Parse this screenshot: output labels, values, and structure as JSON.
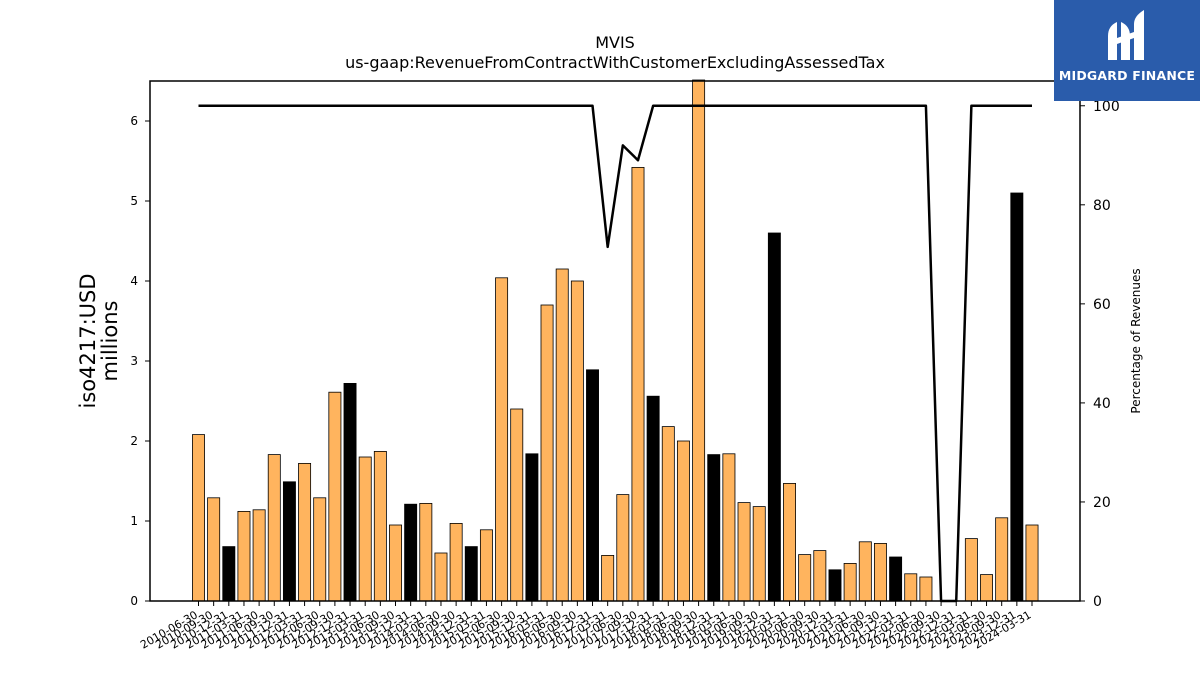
{
  "chart_data": {
    "type": "bar",
    "title": "MVIS",
    "subtitle": "us-gaap:RevenueFromContractWithCustomerExcludingAssessedTax",
    "ylabel_line1": "iso4217:USD",
    "ylabel_line2": "millions",
    "y2label": "Percentage of Revenues",
    "ylim": [
      0,
      6.5
    ],
    "y2lim": [
      0,
      105
    ],
    "yticks": [
      "0",
      "1",
      "2",
      "3",
      "4",
      "5",
      "6"
    ],
    "y2ticks": [
      "0",
      "20",
      "40",
      "60",
      "80",
      "100"
    ],
    "categories": [
      "2010-06-30",
      "2010-09-30",
      "2010-12-31",
      "2011-03-31",
      "2011-06-30",
      "2011-09-30",
      "2011-12-31",
      "2012-03-31",
      "2012-06-30",
      "2012-09-30",
      "2012-12-31",
      "2013-03-31",
      "2013-06-30",
      "2013-09-30",
      "2013-12-31",
      "2014-03-31",
      "2014-06-30",
      "2014-09-30",
      "2014-12-31",
      "2015-03-31",
      "2015-06-30",
      "2015-09-30",
      "2015-12-31",
      "2016-03-31",
      "2016-06-30",
      "2016-09-30",
      "2016-12-31",
      "2017-03-31",
      "2017-06-30",
      "2017-09-30",
      "2017-12-31",
      "2018-03-31",
      "2018-06-30",
      "2018-09-30",
      "2018-12-31",
      "2019-03-31",
      "2019-06-30",
      "2019-09-30",
      "2019-12-31",
      "2020-03-31",
      "2020-06-30",
      "2020-09-30",
      "2020-12-31",
      "2021-03-31",
      "2021-06-30",
      "2021-09-30",
      "2021-12-31",
      "2022-03-31",
      "2022-06-30",
      "2022-09-30",
      "2022-12-31",
      "2023-03-31",
      "2023-06-30",
      "2023-09-30",
      "2023-12-31",
      "2024-03-31"
    ],
    "values": [
      2.08,
      1.29,
      0.68,
      1.12,
      1.14,
      1.83,
      1.49,
      1.72,
      1.29,
      2.61,
      2.72,
      1.8,
      1.87,
      0.95,
      1.21,
      1.22,
      0.6,
      0.97,
      0.68,
      0.89,
      4.04,
      2.4,
      1.84,
      3.7,
      4.15,
      4.0,
      2.89,
      0.57,
      1.33,
      5.42,
      2.56,
      2.18,
      2.0,
      6.6,
      1.83,
      1.84,
      1.23,
      1.18,
      4.6,
      1.47,
      0.58,
      0.63,
      0.39,
      0.47,
      0.74,
      0.72,
      0.55,
      0.34,
      0.3,
      0.0,
      0.0,
      0.78,
      0.33,
      1.04,
      5.1,
      0.95
    ],
    "bar_highlight": [
      false,
      false,
      true,
      false,
      false,
      false,
      true,
      false,
      false,
      false,
      true,
      false,
      false,
      false,
      true,
      false,
      false,
      false,
      true,
      false,
      false,
      false,
      true,
      false,
      false,
      false,
      true,
      false,
      false,
      false,
      true,
      false,
      false,
      false,
      true,
      false,
      false,
      false,
      true,
      false,
      false,
      false,
      true,
      false,
      false,
      false,
      true,
      false,
      false,
      false,
      true,
      false,
      false,
      false,
      true,
      false
    ],
    "line_values": [
      100,
      100,
      100,
      100,
      100,
      100,
      100,
      100,
      100,
      100,
      100,
      100,
      100,
      100,
      100,
      100,
      100,
      100,
      100,
      100,
      100,
      100,
      100,
      100,
      100,
      100,
      100,
      71.5,
      92,
      89,
      100,
      100,
      100,
      100,
      100,
      100,
      100,
      100,
      100,
      100,
      100,
      100,
      100,
      100,
      100,
      100,
      100,
      100,
      100,
      0,
      0,
      100,
      100,
      100,
      100,
      100
    ],
    "colors": {
      "bar": "#ffb45e",
      "bar_highlight": "#000000",
      "bar_edge": "#000000",
      "line": "#000000"
    },
    "grid": false
  },
  "logo": {
    "text": "MIDGARD FINANCE",
    "bg": "#2a5cab"
  }
}
